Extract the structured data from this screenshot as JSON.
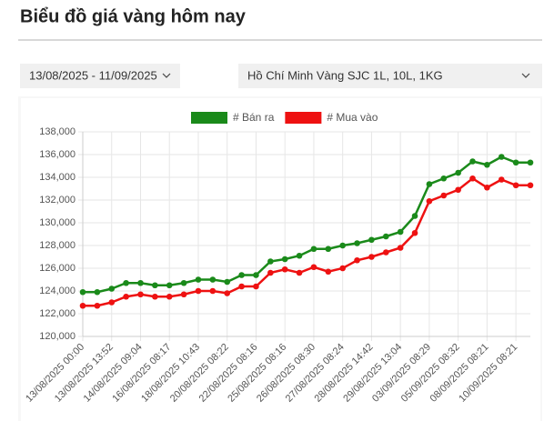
{
  "header": {
    "title": "Biểu đồ giá vàng hôm nay"
  },
  "filters": {
    "date_range": "13/08/2025 - 11/09/2025",
    "product": "Hồ Chí Minh Vàng SJC 1L, 10L, 1KG"
  },
  "chart_data": {
    "type": "line",
    "categories": [
      "13/08/2025 00:00",
      null,
      "13/08/2025 13:52",
      null,
      "14/08/2025 09:04",
      null,
      "16/08/2025 08:17",
      null,
      "18/08/2025 10:43",
      null,
      "20/08/2025 08:22",
      null,
      "22/08/2025 08:16",
      null,
      "25/08/2025 08:16",
      null,
      "26/08/2025 08:30",
      null,
      "27/08/2025 08:24",
      null,
      "28/08/2025 14:42",
      null,
      "29/08/2025 13:04",
      null,
      "03/09/2025 08:29",
      null,
      "05/09/2025 08:32",
      null,
      "08/09/2025 08:21",
      null,
      "10/09/2025 08:21",
      null
    ],
    "series": [
      {
        "name": "# Bán ra",
        "color": "#1a8a1a",
        "values": [
          123900,
          123900,
          124200,
          124700,
          124700,
          124500,
          124500,
          124700,
          125000,
          125000,
          124800,
          125400,
          125400,
          126600,
          126800,
          127100,
          127700,
          127700,
          128000,
          128200,
          128500,
          128800,
          129200,
          130600,
          133400,
          133900,
          134400,
          135400,
          135100,
          135800,
          135300,
          135300
        ]
      },
      {
        "name": "# Mua vào",
        "color": "#ee1111",
        "values": [
          122700,
          122700,
          123000,
          123500,
          123700,
          123500,
          123500,
          123700,
          124000,
          124000,
          123800,
          124400,
          124400,
          125600,
          125900,
          125600,
          126100,
          125700,
          126000,
          126700,
          127000,
          127400,
          127800,
          129100,
          131900,
          132400,
          132900,
          133900,
          133100,
          133800,
          133300,
          133300
        ]
      }
    ],
    "ylim": [
      120000,
      138000
    ],
    "yticks": [
      {
        "value": 120000,
        "label": "120,000"
      },
      {
        "value": 122000,
        "label": "122,000"
      },
      {
        "value": 124000,
        "label": "124,000"
      },
      {
        "value": 126000,
        "label": "126,000"
      },
      {
        "value": 128000,
        "label": "128,000"
      },
      {
        "value": 130000,
        "label": "130,000"
      },
      {
        "value": 132000,
        "label": "132,000"
      },
      {
        "value": 134000,
        "label": "134,000"
      },
      {
        "value": 136000,
        "label": "136,000"
      },
      {
        "value": 138000,
        "label": "138,000"
      }
    ],
    "grid": true
  }
}
